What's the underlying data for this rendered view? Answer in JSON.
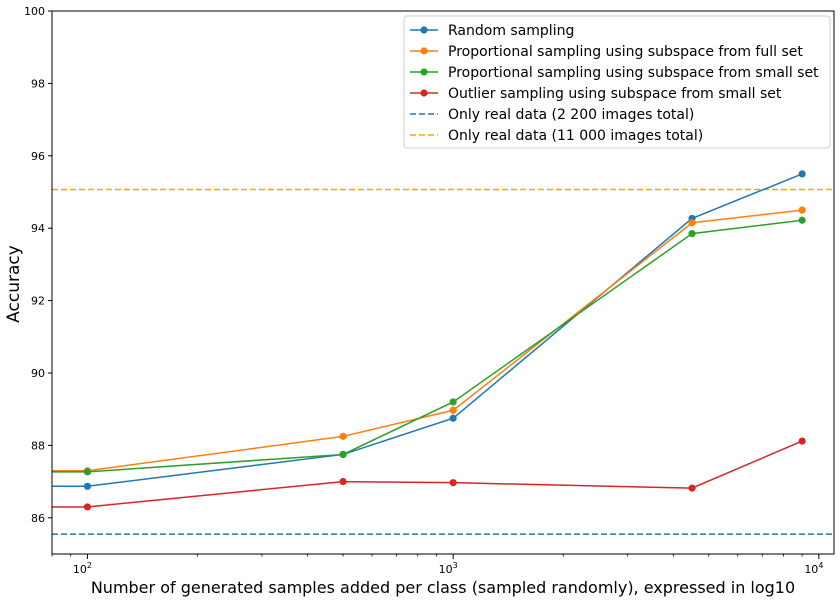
{
  "chart_data": {
    "type": "line",
    "xlabel": "Number of generated samples added per class (sampled randomly), expressed in log10",
    "ylabel": "Accuracy",
    "x_scale": "log",
    "xlim": [
      80,
      11000
    ],
    "ylim": [
      85,
      100
    ],
    "y_ticks": [
      86,
      88,
      90,
      92,
      94,
      96,
      98,
      100
    ],
    "x_ticks": [
      {
        "value": 100,
        "base": "10",
        "exp": "2"
      },
      {
        "value": 1000,
        "base": "10",
        "exp": "3"
      },
      {
        "value": 10000,
        "base": "10",
        "exp": "4"
      }
    ],
    "grid": false,
    "legend_position": "top-right",
    "x": [
      100,
      500,
      1000,
      4500,
      9000
    ],
    "series": [
      {
        "name": "Random sampling",
        "color": "#1f77b4",
        "x": [
          80,
          100,
          500,
          1000,
          4500,
          9000
        ],
        "values": [
          86.87,
          86.87,
          87.75,
          88.75,
          94.27,
          95.5
        ]
      },
      {
        "name": "Proportional sampling using subspace from full set",
        "color": "#ff7f0e",
        "x": [
          80,
          100,
          500,
          1000,
          4500,
          9000
        ],
        "values": [
          87.3,
          87.3,
          88.25,
          88.97,
          94.15,
          94.5
        ]
      },
      {
        "name": "Proportional sampling using subspace from small set",
        "color": "#2ca02c",
        "x": [
          80,
          100,
          500,
          1000,
          4500,
          9000
        ],
        "values": [
          87.27,
          87.27,
          87.75,
          89.2,
          93.85,
          94.22
        ]
      },
      {
        "name": "Outlier sampling using subspace from small set",
        "color": "#d62728",
        "x": [
          80,
          100,
          500,
          1000,
          4500,
          9000
        ],
        "values": [
          86.3,
          86.3,
          87.0,
          86.97,
          86.82,
          88.12
        ]
      }
    ],
    "reference_lines": [
      {
        "name": "Only real data (2 200 images total)",
        "value": 85.55,
        "color": "#1f77b4"
      },
      {
        "name": "Only real data (11 000 images total)",
        "value": 95.07,
        "color": "#ffa500"
      }
    ]
  }
}
